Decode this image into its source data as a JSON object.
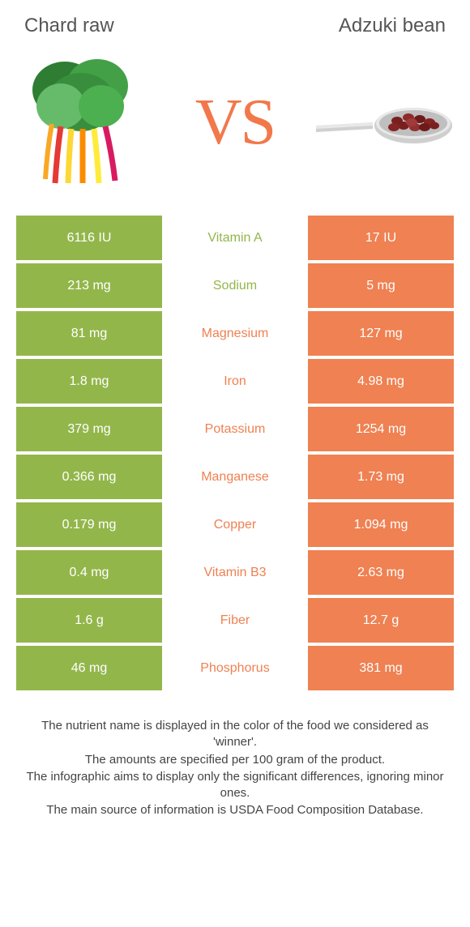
{
  "colors": {
    "green": "#93b64b",
    "orange": "#ef8152",
    "vs": "#f2784b",
    "title": "#555555",
    "foot": "#444444",
    "bg": "#ffffff"
  },
  "header": {
    "left": "Chard raw",
    "right": "Adzuki bean"
  },
  "vs": "VS",
  "rows": [
    {
      "left": "6116 IU",
      "mid": "Vitamin A",
      "right": "17 IU",
      "winner": "left"
    },
    {
      "left": "213 mg",
      "mid": "Sodium",
      "right": "5 mg",
      "winner": "left"
    },
    {
      "left": "81 mg",
      "mid": "Magnesium",
      "right": "127 mg",
      "winner": "right"
    },
    {
      "left": "1.8 mg",
      "mid": "Iron",
      "right": "4.98 mg",
      "winner": "right"
    },
    {
      "left": "379 mg",
      "mid": "Potassium",
      "right": "1254 mg",
      "winner": "right"
    },
    {
      "left": "0.366 mg",
      "mid": "Manganese",
      "right": "1.73 mg",
      "winner": "right"
    },
    {
      "left": "0.179 mg",
      "mid": "Copper",
      "right": "1.094 mg",
      "winner": "right"
    },
    {
      "left": "0.4 mg",
      "mid": "Vitamin B3",
      "right": "2.63 mg",
      "winner": "right"
    },
    {
      "left": "1.6 g",
      "mid": "Fiber",
      "right": "12.7 g",
      "winner": "right"
    },
    {
      "left": "46 mg",
      "mid": "Phosphorus",
      "right": "381 mg",
      "winner": "right"
    }
  ],
  "footnotes": [
    "The nutrient name is displayed in the color of the food we considered as 'winner'.",
    "The amounts are specified per 100 gram of the product.",
    "The infographic aims to display only the significant differences, ignoring minor ones.",
    "The main source of information is USDA Food Composition Database."
  ]
}
